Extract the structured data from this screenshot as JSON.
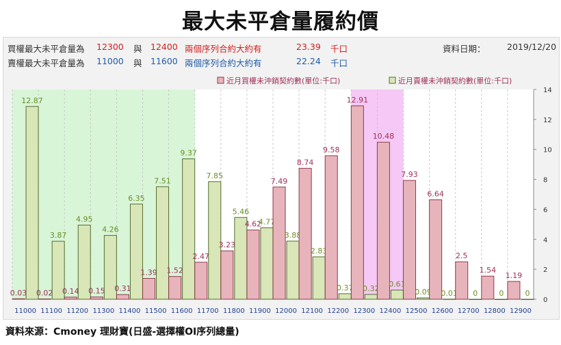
{
  "title": "最大未平倉量履約價",
  "info": {
    "call_row": {
      "label": "買權最大未平倉量為",
      "strike1": "12300",
      "mid": "與",
      "strike2": "12400",
      "text": "兩個序列合約大約有",
      "value": "23.39",
      "unit": "千口"
    },
    "put_row": {
      "label": "賣權最大未平倉量為",
      "strike1": "11000",
      "mid": "與",
      "strike2": "11600",
      "text": "兩個序列合約大約有",
      "value": "22.24",
      "unit": "千口"
    },
    "date_label": "資料日期：",
    "date": "2019/12/20"
  },
  "colors": {
    "call": "#e8b4bc",
    "put": "#d8e6b8",
    "call_border": "#8b3a4a",
    "put_border": "#556b2f",
    "call_label": "#a0305a",
    "put_label": "#6b8e23",
    "green_band": "#d8f5d8",
    "pink_band": "#f5c8f5"
  },
  "chart_data": {
    "type": "bar",
    "categories": [
      "11000",
      "11100",
      "11200",
      "11300",
      "11400",
      "11500",
      "11600",
      "11700",
      "11800",
      "11900",
      "12000",
      "12100",
      "12200",
      "12300",
      "12400",
      "12500",
      "12600",
      "12700",
      "12800",
      "12900"
    ],
    "series": [
      {
        "name": "近月買權未沖銷契約數(單位:千口)",
        "values": [
          0.03,
          0.02,
          0.14,
          0.15,
          0.31,
          1.39,
          1.52,
          2.47,
          3.23,
          4.62,
          7.49,
          8.74,
          9.58,
          12.91,
          10.48,
          7.93,
          6.64,
          2.5,
          1.54,
          1.19
        ]
      },
      {
        "name": "近月賣權未沖銷契約數(單位:千口)",
        "values": [
          12.87,
          3.87,
          4.95,
          4.26,
          6.35,
          7.51,
          9.37,
          7.85,
          5.46,
          4.77,
          3.88,
          2.83,
          0.37,
          0.32,
          0.61,
          0.09,
          0.01,
          0,
          0,
          0
        ]
      }
    ],
    "yticks": [
      "0",
      "2",
      "4",
      "6",
      "8",
      "10",
      "12",
      "14"
    ],
    "ylim": [
      0,
      14
    ],
    "y_axis_side": "right",
    "green_band_categories": [
      "11000",
      "11600"
    ],
    "pink_band_categories": [
      "12300",
      "12400"
    ]
  },
  "source": "資料來源：Cmoney 理財寶(日盛-選擇權OI序列總量)"
}
